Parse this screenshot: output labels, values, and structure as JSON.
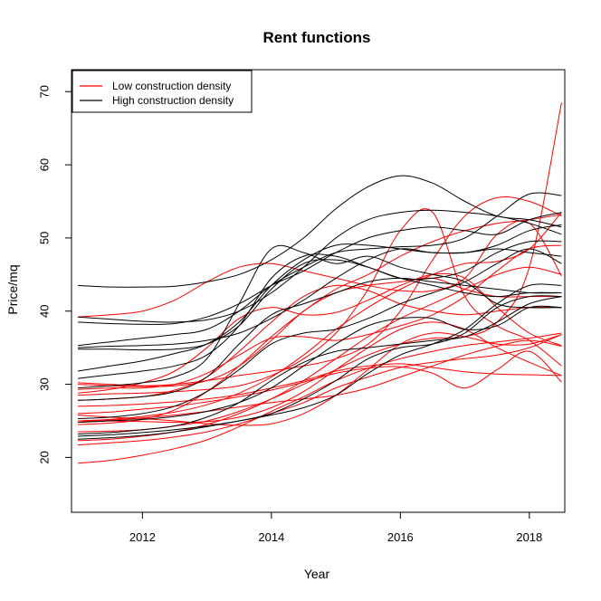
{
  "chart_data": {
    "type": "line",
    "title": "Rent functions",
    "xlabel": "Year",
    "ylabel": "Price/mq",
    "xlim": [
      2010.9,
      2018.55
    ],
    "ylim": [
      12.5,
      73
    ],
    "x_ticks": [
      2012,
      2014,
      2016,
      2018
    ],
    "y_ticks": [
      20,
      30,
      40,
      50,
      60,
      70
    ],
    "grid": false,
    "legend_position": "top-left",
    "legend": [
      {
        "label": "Low construction density",
        "color": "#ff0000"
      },
      {
        "label": "High construction density",
        "color": "#000000"
      }
    ],
    "x": [
      2011.0,
      2011.5,
      2012.0,
      2012.5,
      2013.0,
      2013.5,
      2014.0,
      2014.5,
      2015.0,
      2015.5,
      2016.0,
      2016.5,
      2017.0,
      2017.5,
      2018.0,
      2018.5
    ],
    "series": [
      {
        "group": "Low construction density",
        "color": "#ff0000",
        "values": [
          19.2,
          19.6,
          20.3,
          21.2,
          22.4,
          24.2,
          26.3,
          28.3,
          30.5,
          32.2,
          33.5,
          34.5,
          35.3,
          35.8,
          36.3,
          37.0
        ]
      },
      {
        "group": "Low construction density",
        "color": "#ff0000",
        "values": [
          21.7,
          22.0,
          22.3,
          22.8,
          23.5,
          24.6,
          26.0,
          27.5,
          29.5,
          31.0,
          32.3,
          33.0,
          33.5,
          34.0,
          35.0,
          36.8
        ]
      },
      {
        "group": "Low construction density",
        "color": "#ff0000",
        "values": [
          22.3,
          22.5,
          22.9,
          23.5,
          24.5,
          26.0,
          28.0,
          30.5,
          33.5,
          36.5,
          39.0,
          41.0,
          43.0,
          45.0,
          46.0,
          45.0
        ]
      },
      {
        "group": "Low construction density",
        "color": "#ff0000",
        "values": [
          24.8,
          25.1,
          25.4,
          25.8,
          26.3,
          26.9,
          27.5,
          28.0,
          28.5,
          29.5,
          31.0,
          32.5,
          34.0,
          35.2,
          36.0,
          35.2
        ]
      },
      {
        "group": "Low construction density",
        "color": "#ff0000",
        "values": [
          25.0,
          25.0,
          24.9,
          24.8,
          24.9,
          25.5,
          26.8,
          29.0,
          32.0,
          35.0,
          37.5,
          38.5,
          37.5,
          35.0,
          33.0,
          31.2
        ]
      },
      {
        "group": "Low construction density",
        "color": "#ff0000",
        "values": [
          25.8,
          25.5,
          25.3,
          25.0,
          24.6,
          24.4,
          24.6,
          26.0,
          28.5,
          32.0,
          35.5,
          37.0,
          36.5,
          35.5,
          35.5,
          36.8
        ]
      },
      {
        "group": "Low construction density",
        "color": "#ff0000",
        "values": [
          26.0,
          26.2,
          26.6,
          27.0,
          27.6,
          28.3,
          29.2,
          30.3,
          31.5,
          32.2,
          32.4,
          31.5,
          29.5,
          32.0,
          34.5,
          30.3
        ]
      },
      {
        "group": "Low construction density",
        "color": "#ff0000",
        "values": [
          27.8,
          28.0,
          28.3,
          29.2,
          31.0,
          34.5,
          38.5,
          42.0,
          43.5,
          42.8,
          41.0,
          40.0,
          39.5,
          40.0,
          40.5,
          40.5
        ]
      },
      {
        "group": "Low construction density",
        "color": "#ff0000",
        "values": [
          29.3,
          29.5,
          29.5,
          30.0,
          31.5,
          34.0,
          36.3,
          36.5,
          36.0,
          36.8,
          38.0,
          39.5,
          42.0,
          45.5,
          48.5,
          49.0
        ]
      },
      {
        "group": "Low construction density",
        "color": "#ff0000",
        "values": [
          30.2,
          30.0,
          29.8,
          30.0,
          30.5,
          31.2,
          31.8,
          32.5,
          33.5,
          35.5,
          40.0,
          47.0,
          53.0,
          55.5,
          55.0,
          53.0
        ]
      },
      {
        "group": "Low construction density",
        "color": "#ff0000",
        "values": [
          30.0,
          29.8,
          29.7,
          29.8,
          30.5,
          32.5,
          36.0,
          40.0,
          42.5,
          43.5,
          44.0,
          44.5,
          43.0,
          42.0,
          42.0,
          42.0
        ]
      },
      {
        "group": "Low construction density",
        "color": "#ff0000",
        "values": [
          28.8,
          29.3,
          30.2,
          31.8,
          35.0,
          39.0,
          40.5,
          39.5,
          39.8,
          41.5,
          43.5,
          45.0,
          44.5,
          40.5,
          37.0,
          35.3
        ]
      },
      {
        "group": "Low construction density",
        "color": "#ff0000",
        "values": [
          24.5,
          24.7,
          25.2,
          26.5,
          29.0,
          32.5,
          36.5,
          40.0,
          43.0,
          45.0,
          47.5,
          49.5,
          51.0,
          52.0,
          52.5,
          53.2
        ]
      },
      {
        "group": "Low construction density",
        "color": "#ff0000",
        "values": [
          25.0,
          25.2,
          25.6,
          26.2,
          27.2,
          28.8,
          31.0,
          34.0,
          37.5,
          40.5,
          43.0,
          45.0,
          46.5,
          46.8,
          48.5,
          53.5
        ]
      },
      {
        "group": "Low construction density",
        "color": "#ff0000",
        "values": [
          39.2,
          39.5,
          40.0,
          41.5,
          44.0,
          46.0,
          46.5,
          45.5,
          44.5,
          43.5,
          42.8,
          42.8,
          44.5,
          50.5,
          52.0,
          44.8
        ]
      },
      {
        "group": "Low construction density",
        "color": "#ff0000",
        "values": [
          28.5,
          28.7,
          28.8,
          29.0,
          29.3,
          29.8,
          31.2,
          33.5,
          37.0,
          43.0,
          51.0,
          53.5,
          42.0,
          38.0,
          36.0,
          32.5
        ]
      },
      {
        "group": "Low construction density",
        "color": "#ff0000",
        "values": [
          27.0,
          27.1,
          27.3,
          27.6,
          28.0,
          28.6,
          29.5,
          30.5,
          31.8,
          32.5,
          32.8,
          32.3,
          31.7,
          31.4,
          31.3,
          31.2
        ]
      },
      {
        "group": "Low construction density",
        "color": "#ff0000",
        "values": [
          23.5,
          23.6,
          23.8,
          24.3,
          25.0,
          26.3,
          28.0,
          30.0,
          32.0,
          34.0,
          35.5,
          36.3,
          36.5,
          38.5,
          46.0,
          68.5
        ]
      },
      {
        "group": "High construction density",
        "color": "#000000",
        "values": [
          43.5,
          43.3,
          43.3,
          43.4,
          44.0,
          45.0,
          47.0,
          50.0,
          54.0,
          57.0,
          58.5,
          57.5,
          55.0,
          53.0,
          52.5,
          51.5
        ]
      },
      {
        "group": "High construction density",
        "color": "#000000",
        "values": [
          39.2,
          38.9,
          38.6,
          38.5,
          38.8,
          40.0,
          42.5,
          46.0,
          50.0,
          52.5,
          53.5,
          53.8,
          53.5,
          53.0,
          52.0,
          50.5
        ]
      },
      {
        "group": "High construction density",
        "color": "#000000",
        "values": [
          38.5,
          38.3,
          38.2,
          38.3,
          39.2,
          41.0,
          43.5,
          45.5,
          48.0,
          50.0,
          51.0,
          51.5,
          51.0,
          50.5,
          52.5,
          53.5
        ]
      },
      {
        "group": "High construction density",
        "color": "#000000",
        "values": [
          35.3,
          35.8,
          36.3,
          36.8,
          37.5,
          40.0,
          43.5,
          46.0,
          48.0,
          48.5,
          48.8,
          49.0,
          50.0,
          53.0,
          56.0,
          55.8
        ]
      },
      {
        "group": "High construction density",
        "color": "#000000",
        "values": [
          35.0,
          35.2,
          35.3,
          35.5,
          36.0,
          37.0,
          39.0,
          41.5,
          44.5,
          47.0,
          48.5,
          48.0,
          48.0,
          49.0,
          51.0,
          51.8
        ]
      },
      {
        "group": "High construction density",
        "color": "#000000",
        "values": [
          34.8,
          34.8,
          34.7,
          34.8,
          35.5,
          38.0,
          43.0,
          46.5,
          47.0,
          46.0,
          44.5,
          44.5,
          45.5,
          48.0,
          49.5,
          49.5
        ]
      },
      {
        "group": "High construction density",
        "color": "#000000",
        "values": [
          31.8,
          32.5,
          33.2,
          34.2,
          35.5,
          38.5,
          43.5,
          47.0,
          49.0,
          49.0,
          48.5,
          48.0,
          48.0,
          48.5,
          48.0,
          47.5
        ]
      },
      {
        "group": "High construction density",
        "color": "#000000",
        "values": [
          30.8,
          31.3,
          31.8,
          32.5,
          34.0,
          38.0,
          44.5,
          47.5,
          47.5,
          46.0,
          44.5,
          43.5,
          42.5,
          42.0,
          42.5,
          42.5
        ]
      },
      {
        "group": "High construction density",
        "color": "#000000",
        "values": [
          29.5,
          29.8,
          30.2,
          31.0,
          33.5,
          41.0,
          48.5,
          48.0,
          46.5,
          47.5,
          46.0,
          45.0,
          44.0,
          41.0,
          40.5,
          40.5
        ]
      },
      {
        "group": "High construction density",
        "color": "#000000",
        "values": [
          27.8,
          28.0,
          28.3,
          29.0,
          31.0,
          35.5,
          39.5,
          41.0,
          42.5,
          44.0,
          44.5,
          44.0,
          43.5,
          43.0,
          42.5,
          42.5
        ]
      },
      {
        "group": "High construction density",
        "color": "#000000",
        "values": [
          25.3,
          25.5,
          26.0,
          27.0,
          29.0,
          32.0,
          35.5,
          37.0,
          37.5,
          39.0,
          41.0,
          42.5,
          44.0,
          46.5,
          48.5,
          46.5
        ]
      },
      {
        "group": "High construction density",
        "color": "#000000",
        "values": [
          24.8,
          25.0,
          25.2,
          25.6,
          26.3,
          27.5,
          29.5,
          32.5,
          35.5,
          38.0,
          39.0,
          39.0,
          37.5,
          38.0,
          40.5,
          40.5
        ]
      },
      {
        "group": "High construction density",
        "color": "#000000",
        "values": [
          23.2,
          23.4,
          23.8,
          24.3,
          25.5,
          27.5,
          30.5,
          33.0,
          34.5,
          35.0,
          35.5,
          36.0,
          36.5,
          38.5,
          41.0,
          42.0
        ]
      },
      {
        "group": "High construction density",
        "color": "#000000",
        "values": [
          22.5,
          22.7,
          23.0,
          23.5,
          24.2,
          25.0,
          26.0,
          28.0,
          30.5,
          33.5,
          35.0,
          35.5,
          37.0,
          40.5,
          42.0,
          42.0
        ]
      },
      {
        "group": "High construction density",
        "color": "#000000",
        "values": [
          22.9,
          23.1,
          23.4,
          23.8,
          24.3,
          25.0,
          25.8,
          26.8,
          28.5,
          31.5,
          34.0,
          35.5,
          37.5,
          41.0,
          43.5,
          43.5
        ]
      }
    ]
  }
}
